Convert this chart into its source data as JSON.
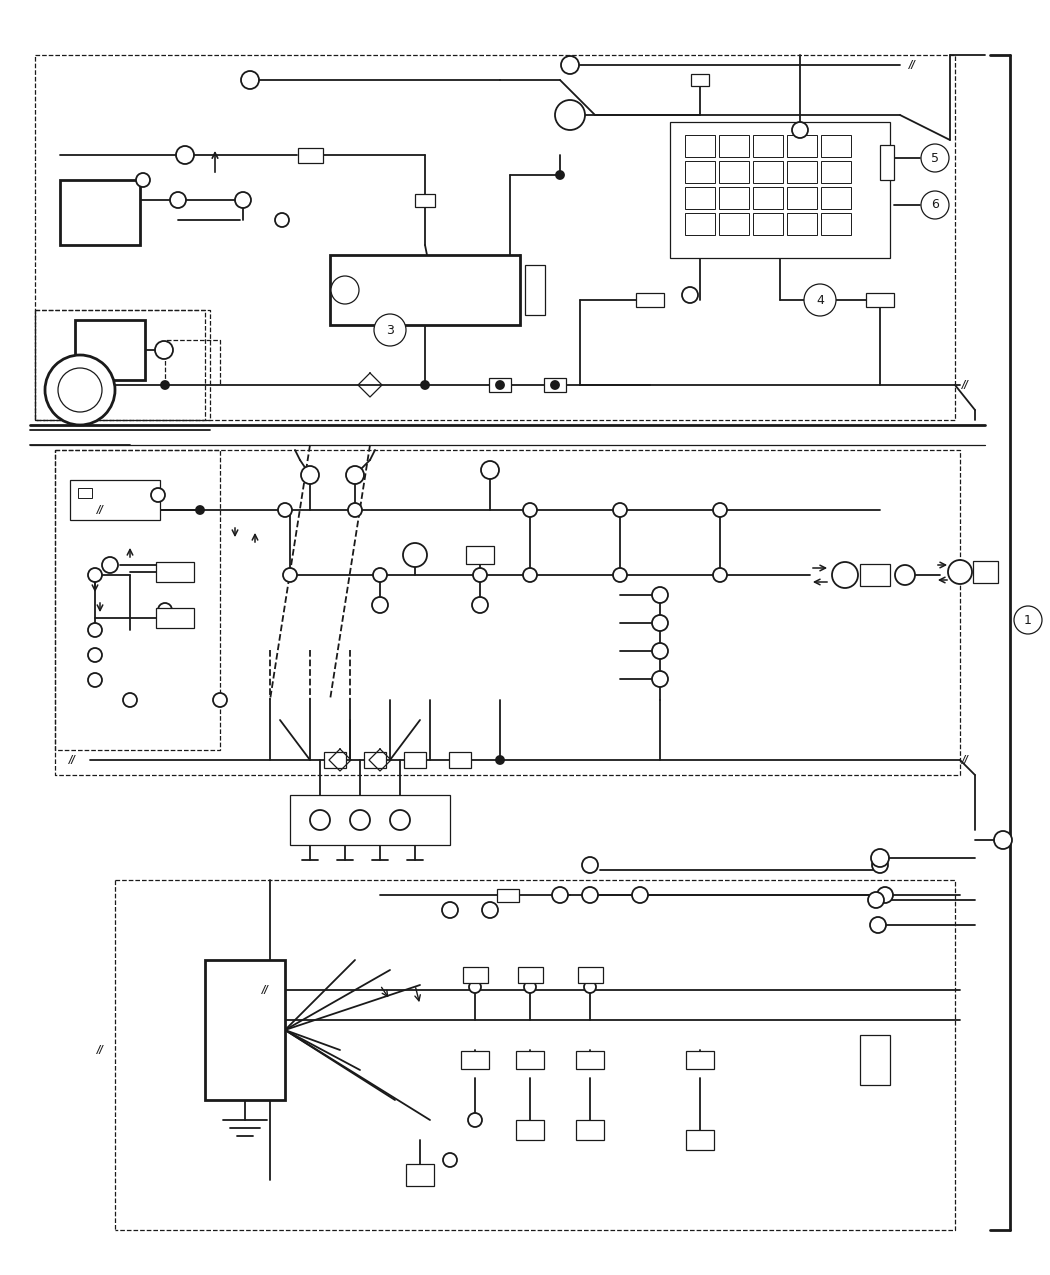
{
  "bg_color": "#ffffff",
  "line_color": "#1a1a1a",
  "fig_width": 10.5,
  "fig_height": 12.75,
  "lw": 1.3,
  "lw_thick": 2.0,
  "lw_thin": 0.9
}
